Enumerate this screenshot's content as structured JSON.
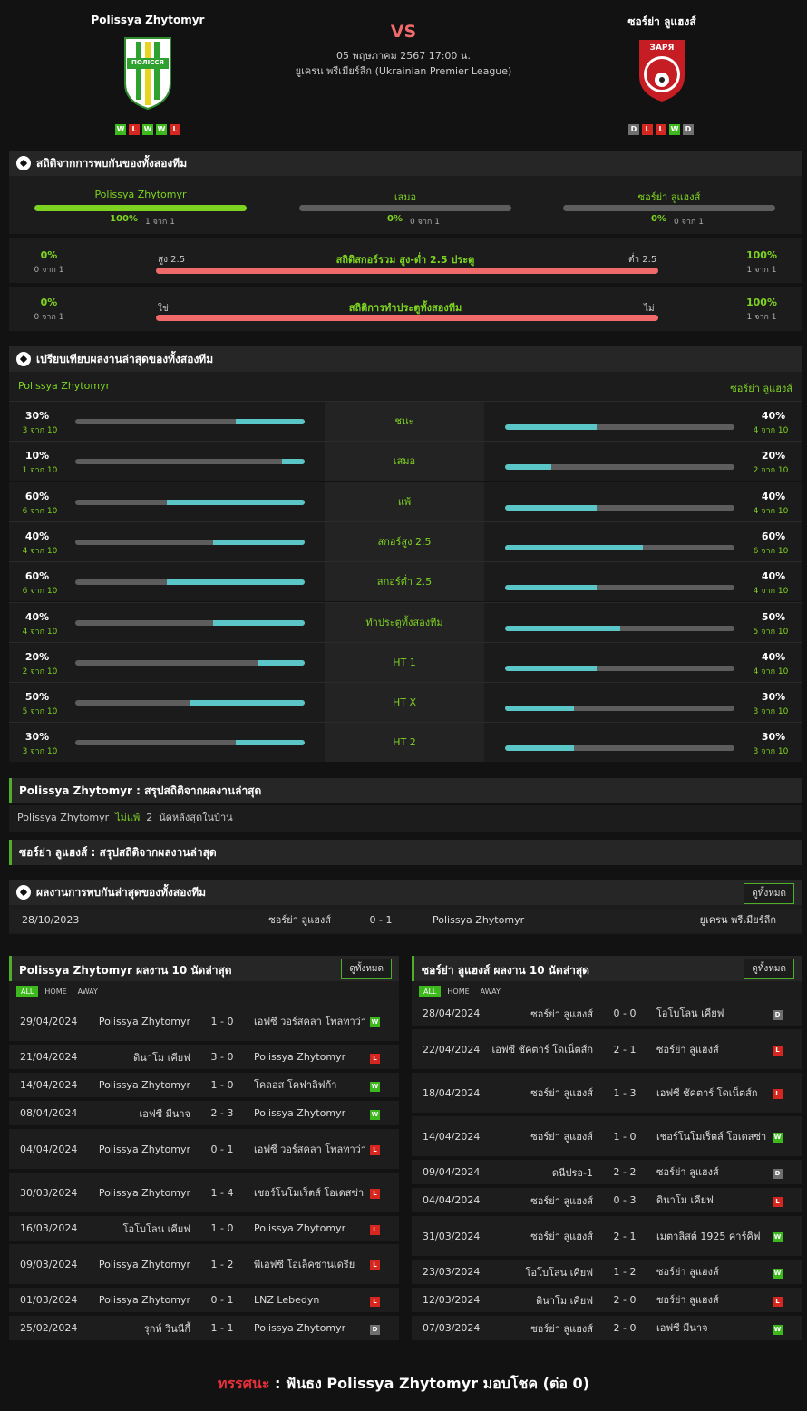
{
  "match": {
    "home": "Polissya Zhytomyr",
    "away": "ซอร์ย่า ลูแฮงส์",
    "vs": "VS",
    "datetime": "05 พฤษภาคม 2567 17:00 น.",
    "league": "ยูเครน พรีเมียร์ลีก (Ukrainian Premier League)",
    "home_form": [
      "W",
      "L",
      "W",
      "W",
      "L"
    ],
    "away_form": [
      "D",
      "L",
      "L",
      "W",
      "D"
    ],
    "home_logo_text": "ПОЛІССЯ",
    "away_logo_text": "ЗАРЯ"
  },
  "h2h": {
    "title": "สถิติจากการพบกันของทั้งสองทีม",
    "cols": [
      {
        "name": "Polissya Zhytomyr",
        "pct": "100%",
        "sub": "1 จาก 1",
        "fill": 1
      },
      {
        "name": "เสมอ",
        "pct": "0%",
        "sub": "0 จาก 1",
        "fill": 0
      },
      {
        "name": "ซอร์ย่า ลูแฮงส์",
        "pct": "0%",
        "sub": "0 จาก 1",
        "fill": 0
      }
    ]
  },
  "ou": {
    "lpct": "0%",
    "lsub": "0 จาก 1",
    "llabel": "สูง 2.5",
    "title": "สถิติสกอร์รวม สูง-ต่ำ 2.5 ประตู",
    "rlabel": "ต่ำ 2.5",
    "rpct": "100%",
    "rsub": "1 จาก 1"
  },
  "btts": {
    "lpct": "0%",
    "lsub": "0 จาก 1",
    "llabel": "ใช่",
    "title": "สถิติการทำประตูทั้งสองทีม",
    "rlabel": "ไม่",
    "rpct": "100%",
    "rsub": "1 จาก 1"
  },
  "compare": {
    "title": "เปรียบเทียบผลงานล่าสุดของทั้งสองทีม",
    "home": "Polissya Zhytomyr",
    "away": "ซอร์ย่า ลูแฮงส์",
    "rows": [
      {
        "label": "ชนะ",
        "hp": "30%",
        "hs": "3 จาก 10",
        "hv": 0.3,
        "ap": "40%",
        "as": "4 จาก 10",
        "av": 0.4
      },
      {
        "label": "เสมอ",
        "hp": "10%",
        "hs": "1 จาก 10",
        "hv": 0.1,
        "ap": "20%",
        "as": "2 จาก 10",
        "av": 0.2
      },
      {
        "label": "แพ้",
        "hp": "60%",
        "hs": "6 จาก 10",
        "hv": 0.6,
        "ap": "40%",
        "as": "4 จาก 10",
        "av": 0.4
      },
      {
        "label": "สกอร์สูง 2.5",
        "hp": "40%",
        "hs": "4 จาก 10",
        "hv": 0.4,
        "ap": "60%",
        "as": "6 จาก 10",
        "av": 0.6
      },
      {
        "label": "สกอร์ต่ำ 2.5",
        "hp": "60%",
        "hs": "6 จาก 10",
        "hv": 0.6,
        "ap": "40%",
        "as": "4 จาก 10",
        "av": 0.4
      },
      {
        "label": "ทำประตูทั้งสองทีม",
        "hp": "40%",
        "hs": "4 จาก 10",
        "hv": 0.4,
        "ap": "50%",
        "as": "5 จาก 10",
        "av": 0.5
      },
      {
        "label": "HT 1",
        "hp": "20%",
        "hs": "2 จาก 10",
        "hv": 0.2,
        "ap": "40%",
        "as": "4 จาก 10",
        "av": 0.4
      },
      {
        "label": "HT X",
        "hp": "50%",
        "hs": "5 จาก 10",
        "hv": 0.5,
        "ap": "30%",
        "as": "3 จาก 10",
        "av": 0.3
      },
      {
        "label": "HT 2",
        "hp": "30%",
        "hs": "3 จาก 10",
        "hv": 0.3,
        "ap": "30%",
        "as": "3 จาก 10",
        "av": 0.3
      }
    ]
  },
  "summary_home": {
    "title": "Polissya Zhytomyr : สรุปสถิติจากผลงานล่าสุด",
    "team": "Polissya Zhytomyr",
    "hl": "ไม่แพ้",
    "num": "2",
    "rest": "นัดหลังสุดในบ้าน"
  },
  "summary_away": {
    "title": "ซอร์ย่า ลูแฮงส์ : สรุปสถิติจากผลงานล่าสุด"
  },
  "recent_h2h": {
    "title": "ผลงานการพบกันล่าสุดของทั้งสองทีม",
    "btn": "ดูทั้งหมด",
    "date": "28/10/2023",
    "home": "ซอร์ย่า ลูแฮงส์",
    "score": "0 - 1",
    "away": "Polissya Zhytomyr",
    "league": "ยูเครน พรีเมียร์ลีก"
  },
  "tabs": [
    "ALL",
    "HOME",
    "AWAY"
  ],
  "home_last": {
    "title": "Polissya Zhytomyr ผลงาน 10 นัดล่าสุด",
    "btn": "ดูทั้งหมด",
    "rows": [
      {
        "d": "29/04/2024",
        "h": "Polissya Zhytomyr",
        "s": "1 - 0",
        "a": "เอฟซี วอร์สคลา โพลทาว่า",
        "r": "W"
      },
      {
        "d": "21/04/2024",
        "h": "ดินาโม เคียฟ",
        "s": "3 - 0",
        "a": "Polissya Zhytomyr",
        "r": "L"
      },
      {
        "d": "14/04/2024",
        "h": "Polissya Zhytomyr",
        "s": "1 - 0",
        "a": "โคลอส โคฟาลิฟก้า",
        "r": "W"
      },
      {
        "d": "08/04/2024",
        "h": "เอฟซี มีนาจ",
        "s": "2 - 3",
        "a": "Polissya Zhytomyr",
        "r": "W"
      },
      {
        "d": "04/04/2024",
        "h": "Polissya Zhytomyr",
        "s": "0 - 1",
        "a": "เอฟซี วอร์สคลา โพลทาว่า",
        "r": "L"
      },
      {
        "d": "30/03/2024",
        "h": "Polissya Zhytomyr",
        "s": "1 - 4",
        "a": "เชอร์โนโมเร็ตส์ โอเดสซ่า",
        "r": "L"
      },
      {
        "d": "16/03/2024",
        "h": "โอโบโลน เคียฟ",
        "s": "1 - 0",
        "a": "Polissya Zhytomyr",
        "r": "L"
      },
      {
        "d": "09/03/2024",
        "h": "Polissya Zhytomyr",
        "s": "1 - 2",
        "a": "พีเอฟซี โอเล็คซานเดรีย",
        "r": "L"
      },
      {
        "d": "01/03/2024",
        "h": "Polissya Zhytomyr",
        "s": "0 - 1",
        "a": "LNZ Lebedyn",
        "r": "L"
      },
      {
        "d": "25/02/2024",
        "h": "รุกห์ วินนีกี้",
        "s": "1 - 1",
        "a": "Polissya Zhytomyr",
        "r": "D"
      }
    ]
  },
  "away_last": {
    "title": "ซอร์ย่า ลูแฮงส์ ผลงาน 10 นัดล่าสุด",
    "btn": "ดูทั้งหมด",
    "rows": [
      {
        "d": "28/04/2024",
        "h": "ซอร์ย่า ลูแฮงส์",
        "s": "0 - 0",
        "a": "โอโบโลน เคียฟ",
        "r": "D"
      },
      {
        "d": "22/04/2024",
        "h": "เอฟซี ชัคตาร์ โดเน็ตส์ก",
        "s": "2 - 1",
        "a": "ซอร์ย่า ลูแฮงส์",
        "r": "L"
      },
      {
        "d": "18/04/2024",
        "h": "ซอร์ย่า ลูแฮงส์",
        "s": "1 - 3",
        "a": "เอฟซี ชัคตาร์ โดเน็ตส์ก",
        "r": "L"
      },
      {
        "d": "14/04/2024",
        "h": "ซอร์ย่า ลูแฮงส์",
        "s": "1 - 0",
        "a": "เชอร์โนโมเร็ตส์ โอเดสซ่า",
        "r": "W"
      },
      {
        "d": "09/04/2024",
        "h": "ดนีปรอ-1",
        "s": "2 - 2",
        "a": "ซอร์ย่า ลูแฮงส์",
        "r": "D"
      },
      {
        "d": "04/04/2024",
        "h": "ซอร์ย่า ลูแฮงส์",
        "s": "0 - 3",
        "a": "ดินาโม เคียฟ",
        "r": "L"
      },
      {
        "d": "31/03/2024",
        "h": "ซอร์ย่า ลูแฮงส์",
        "s": "2 - 1",
        "a": "เมตาลิสต์ 1925 คาร์คิฟ",
        "r": "W"
      },
      {
        "d": "23/03/2024",
        "h": "โอโบโลน เคียฟ",
        "s": "1 - 2",
        "a": "ซอร์ย่า ลูแฮงส์",
        "r": "W"
      },
      {
        "d": "12/03/2024",
        "h": "ดินาโม เคียฟ",
        "s": "2 - 0",
        "a": "ซอร์ย่า ลูแฮงส์",
        "r": "L"
      },
      {
        "d": "07/03/2024",
        "h": "ซอร์ย่า ลูแฮงส์",
        "s": "2 - 0",
        "a": "เอฟซี มีนาจ",
        "r": "W"
      }
    ]
  },
  "verdict": {
    "label": "ทรรศนะ",
    "colon": ":",
    "text": "ฟันธง Polissya Zhytomyr มอบโชค (ต่อ 0)"
  },
  "colors": {
    "accent_green": "#7ed321",
    "bar_teal": "#5ac6c8",
    "bar_red": "#f06a6a",
    "win": "#3db81d",
    "loss": "#d5271f",
    "draw": "#6f6f6f"
  }
}
